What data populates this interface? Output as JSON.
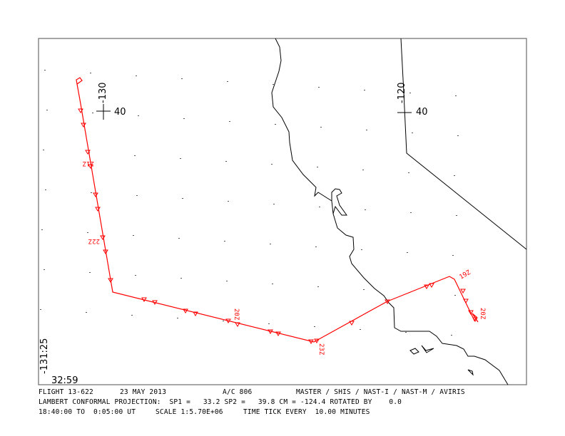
{
  "colors": {
    "track": "#ff0000",
    "map": "#000000",
    "frame": "#888888",
    "grid_dot": "#555555"
  },
  "grid_labels": {
    "lon1": "-130",
    "lat1": "40",
    "lon2": "-120",
    "lat2": "40",
    "corner_lon": "-131:25",
    "corner_lat": "32:59"
  },
  "time_labels": [
    "21Z",
    "22Z",
    "20Z",
    "23Z",
    "19Z",
    "20Z"
  ],
  "footer": {
    "flight": "FLIGHT 13-622",
    "date": "23 MAY 2013",
    "aircraft": "A/C 806",
    "instruments": "MASTER / SHIS / NAST-I / NAST-M / AVIRIS",
    "projection": "LAMBERT CONFORMAL PROJECTION:  SP1 =   33.2 SP2 =   39.8 CM = -124.4 ROTATED BY    0.0",
    "time_range": "18:40:00 TO  0:05:00 UT",
    "scale": "SCALE 1:5.70E+06",
    "time_tick": "TIME TICK EVERY  10.00 MINUTES"
  }
}
